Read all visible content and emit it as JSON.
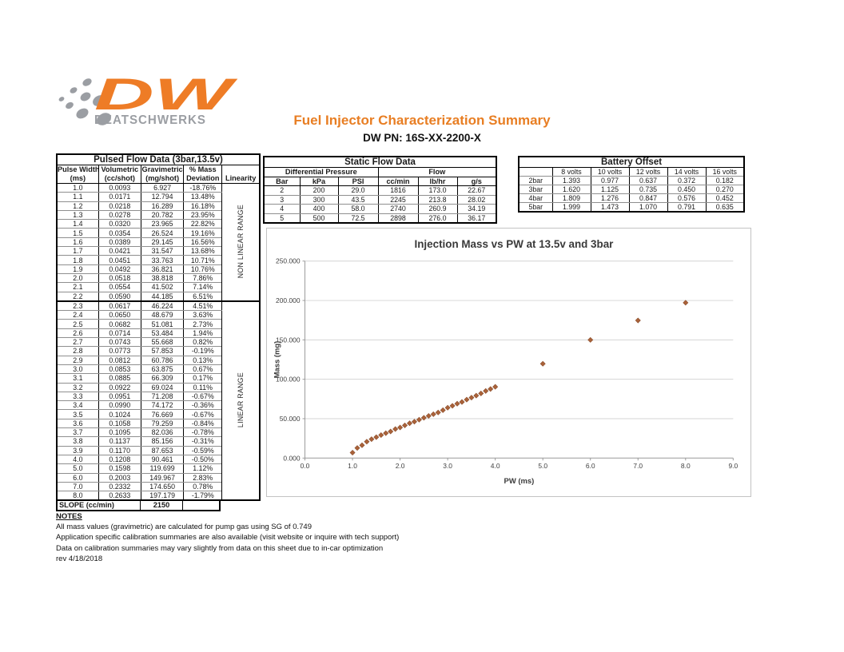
{
  "logo": {
    "brand": "DW",
    "subtext": "DEATSCHWERKS",
    "orange": "#EE7C26",
    "gray": "#9B9EA3"
  },
  "header": {
    "title": "Fuel Injector Characterization Summary",
    "part_number": "DW PN: 16S-XX-2200-X",
    "title_color": "#E87E23"
  },
  "pulsed_table": {
    "title": "Pulsed Flow Data (3bar,13.5v)",
    "col_headers": [
      [
        "Pulse Width",
        "(ms)"
      ],
      [
        "Volumetric",
        "(cc/shot)"
      ],
      [
        "Gravimetric",
        "(mg/shot)"
      ],
      [
        "% Mass",
        "Deviation"
      ],
      [
        "Linearity"
      ]
    ],
    "sections": [
      {
        "label": "NON LINEAR RANGE",
        "rows": 13
      },
      {
        "label": "LINEAR RANGE",
        "rows": 22
      }
    ],
    "rows": [
      [
        "1.0",
        "0.0093",
        "6.927",
        "-18.76%"
      ],
      [
        "1.1",
        "0.0171",
        "12.794",
        "13.48%"
      ],
      [
        "1.2",
        "0.0218",
        "16.289",
        "16.18%"
      ],
      [
        "1.3",
        "0.0278",
        "20.782",
        "23.95%"
      ],
      [
        "1.4",
        "0.0320",
        "23.965",
        "22.82%"
      ],
      [
        "1.5",
        "0.0354",
        "26.524",
        "19.16%"
      ],
      [
        "1.6",
        "0.0389",
        "29.145",
        "16.56%"
      ],
      [
        "1.7",
        "0.0421",
        "31.547",
        "13.68%"
      ],
      [
        "1.8",
        "0.0451",
        "33.763",
        "10.71%"
      ],
      [
        "1.9",
        "0.0492",
        "36.821",
        "10.76%"
      ],
      [
        "2.0",
        "0.0518",
        "38.818",
        "7.86%"
      ],
      [
        "2.1",
        "0.0554",
        "41.502",
        "7.14%"
      ],
      [
        "2.2",
        "0.0590",
        "44.185",
        "6.51%"
      ],
      [
        "2.3",
        "0.0617",
        "46.224",
        "4.51%"
      ],
      [
        "2.4",
        "0.0650",
        "48.679",
        "3.63%"
      ],
      [
        "2.5",
        "0.0682",
        "51.081",
        "2.73%"
      ],
      [
        "2.6",
        "0.0714",
        "53.484",
        "1.94%"
      ],
      [
        "2.7",
        "0.0743",
        "55.668",
        "0.82%"
      ],
      [
        "2.8",
        "0.0773",
        "57.853",
        "-0.19%"
      ],
      [
        "2.9",
        "0.0812",
        "60.786",
        "0.13%"
      ],
      [
        "3.0",
        "0.0853",
        "63.875",
        "0.67%"
      ],
      [
        "3.1",
        "0.0885",
        "66.309",
        "0.17%"
      ],
      [
        "3.2",
        "0.0922",
        "69.024",
        "0.11%"
      ],
      [
        "3.3",
        "0.0951",
        "71.208",
        "-0.67%"
      ],
      [
        "3.4",
        "0.0990",
        "74.172",
        "-0.36%"
      ],
      [
        "3.5",
        "0.1024",
        "76.669",
        "-0.67%"
      ],
      [
        "3.6",
        "0.1058",
        "79.259",
        "-0.84%"
      ],
      [
        "3.7",
        "0.1095",
        "82.036",
        "-0.78%"
      ],
      [
        "3.8",
        "0.1137",
        "85.156",
        "-0.31%"
      ],
      [
        "3.9",
        "0.1170",
        "87.653",
        "-0.59%"
      ],
      [
        "4.0",
        "0.1208",
        "90.461",
        "-0.50%"
      ],
      [
        "5.0",
        "0.1598",
        "119.699",
        "1.12%"
      ],
      [
        "6.0",
        "0.2003",
        "149.967",
        "2.83%"
      ],
      [
        "7.0",
        "0.2332",
        "174.650",
        "0.78%"
      ],
      [
        "8.0",
        "0.2633",
        "197.179",
        "-1.79%"
      ]
    ],
    "slope_label": "SLOPE (cc/min)",
    "slope_value": "2150"
  },
  "static_table": {
    "title": "Static Flow Data",
    "group_headers": [
      "Differential Pressure",
      "Flow"
    ],
    "col_headers": [
      "Bar",
      "kPa",
      "PSI",
      "cc/min",
      "lb/hr",
      "g/s"
    ],
    "rows": [
      [
        "2",
        "200",
        "29.0",
        "1816",
        "173.0",
        "22.67"
      ],
      [
        "3",
        "300",
        "43.5",
        "2245",
        "213.8",
        "28.02"
      ],
      [
        "4",
        "400",
        "58.0",
        "2740",
        "260.9",
        "34.19"
      ],
      [
        "5",
        "500",
        "72.5",
        "2898",
        "276.0",
        "36.17"
      ]
    ]
  },
  "battery_table": {
    "title": "Battery Offset",
    "col_headers": [
      "",
      "8 volts",
      "10 volts",
      "12 volts",
      "14 volts",
      "16 volts"
    ],
    "rows": [
      [
        "2bar",
        "1.393",
        "0.977",
        "0.637",
        "0.372",
        "0.182"
      ],
      [
        "3bar",
        "1.620",
        "1.125",
        "0.735",
        "0.450",
        "0.270"
      ],
      [
        "4bar",
        "1.809",
        "1.276",
        "0.847",
        "0.576",
        "0.452"
      ],
      [
        "5bar",
        "1.999",
        "1.473",
        "1.070",
        "0.791",
        "0.635"
      ]
    ]
  },
  "chart_data": {
    "type": "scatter",
    "title": "Injection Mass vs PW at 13.5v and 3bar",
    "xlabel": "PW (ms)",
    "ylabel": "Mass (mg)",
    "xlim": [
      0,
      9
    ],
    "ylim": [
      0,
      250
    ],
    "x_ticks": [
      "0.0",
      "1.0",
      "2.0",
      "3.0",
      "4.0",
      "5.0",
      "6.0",
      "7.0",
      "8.0",
      "9.0"
    ],
    "y_ticks": [
      "0.000",
      "50.000",
      "100.000",
      "150.000",
      "200.000",
      "250.000"
    ],
    "grid": true,
    "legend": false,
    "marker": "diamond",
    "marker_color": "#AA6239",
    "marker_edge": "#8B4F2E",
    "gridline_color": "#d4d4d4",
    "axis_color": "#9a9a9a",
    "text_color": "#3f3f3f",
    "series": [
      {
        "name": "Injection Mass",
        "x": [
          1.0,
          1.1,
          1.2,
          1.3,
          1.4,
          1.5,
          1.6,
          1.7,
          1.8,
          1.9,
          2.0,
          2.1,
          2.2,
          2.3,
          2.4,
          2.5,
          2.6,
          2.7,
          2.8,
          2.9,
          3.0,
          3.1,
          3.2,
          3.3,
          3.4,
          3.5,
          3.6,
          3.7,
          3.8,
          3.9,
          4.0,
          5.0,
          6.0,
          7.0,
          8.0
        ],
        "y": [
          6.927,
          12.794,
          16.289,
          20.782,
          23.965,
          26.524,
          29.145,
          31.547,
          33.763,
          36.821,
          38.818,
          41.502,
          44.185,
          46.224,
          48.679,
          51.081,
          53.484,
          55.668,
          57.853,
          60.786,
          63.875,
          66.309,
          69.024,
          71.208,
          74.172,
          76.669,
          79.259,
          82.036,
          85.156,
          87.653,
          90.461,
          119.699,
          149.967,
          174.65,
          197.179
        ]
      }
    ]
  },
  "notes": {
    "heading": "NOTES",
    "lines": [
      "All mass values (gravimetric) are calculated for pump gas using SG of 0.749",
      "Application specific calibration summaries are also available (visit website or inquire with tech support)",
      "Data on calibration summaries may vary slightly from data on this sheet due to in-car optimization",
      "rev 4/18/2018"
    ]
  }
}
